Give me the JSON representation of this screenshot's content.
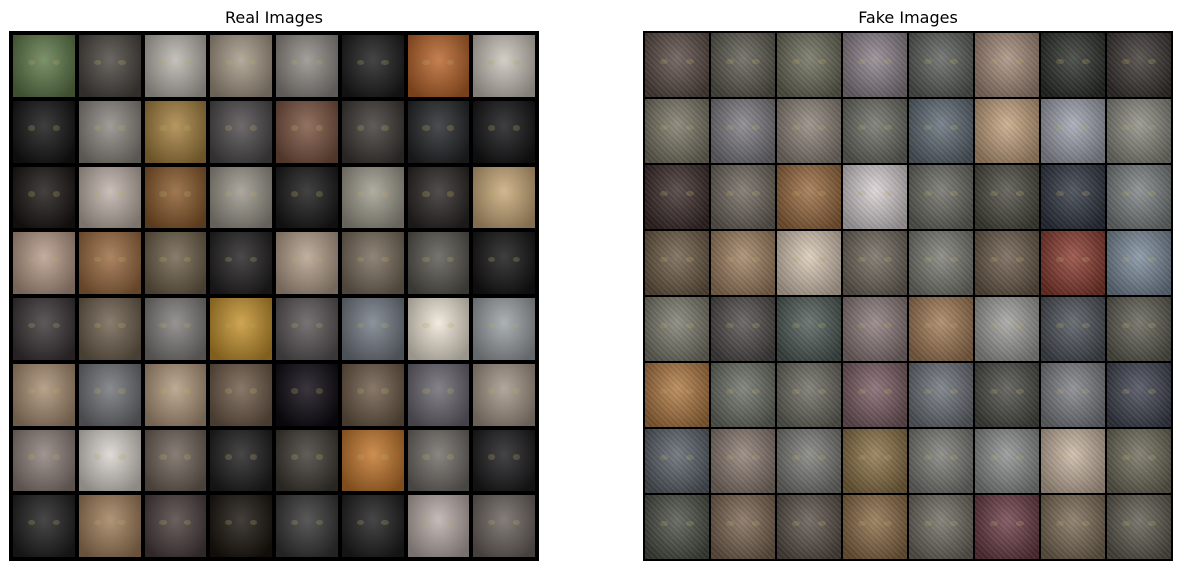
{
  "panels": [
    {
      "id": "real",
      "title": "Real Images",
      "rows": 8,
      "cols": 8,
      "tile_colors": [
        [
          "#5f7a4a",
          "#4a4540",
          "#b8b4ad",
          "#a59886",
          "#8f8a85",
          "#1c1c1c",
          "#b8642a",
          "#c9c3b9"
        ],
        [
          "#141414",
          "#8b8680",
          "#a5813f",
          "#4e4a4c",
          "#7a5340",
          "#3c3835",
          "#232528",
          "#141416"
        ],
        [
          "#1a1614",
          "#bfb1a8",
          "#8a5a2c",
          "#9a958a",
          "#191919",
          "#9e9b8c",
          "#2a2624",
          "#c8a878"
        ],
        [
          "#b69a88",
          "#9a6a40",
          "#6e604a",
          "#232122",
          "#b39e8a",
          "#776a5a",
          "#58564f",
          "#141414"
        ],
        [
          "#3a3436",
          "#6e604e",
          "#7f7d7a",
          "#c4922e",
          "#5a5556",
          "#747b85",
          "#eee6d6",
          "#9aa0a4"
        ],
        [
          "#a88e72",
          "#6f7276",
          "#b1987c",
          "#6e5a48",
          "#0d0a12",
          "#6d5a48",
          "#6a6770",
          "#a29486"
        ],
        [
          "#8c7e78",
          "#d8d2cc",
          "#6e6258",
          "#1e1e1e",
          "#3e3a34",
          "#c2762c",
          "#6f6b66",
          "#1b1b1d"
        ],
        [
          "#1f1f1f",
          "#a07e5a",
          "#4a3e3c",
          "#1a140e",
          "#353535",
          "#1e1e1e",
          "#b8aca8",
          "#6a625e"
        ]
      ]
    },
    {
      "id": "fake",
      "title": "Fake Images",
      "rows": 8,
      "cols": 8,
      "tile_colors": [
        [
          "#5a4a44",
          "#5c5a4e",
          "#6a6a58",
          "#8a8088",
          "#5a5e5a",
          "#a58a78",
          "#2a2e28",
          "#3a3430"
        ],
        [
          "#7a7564",
          "#7c7a80",
          "#8c8278",
          "#6c6c64",
          "#5e6a74",
          "#c5a27e",
          "#9ea2ae",
          "#8a8a80"
        ],
        [
          "#3a2a28",
          "#6e665c",
          "#9a6a3e",
          "#d8d0d2",
          "#6a6a62",
          "#4a4a40",
          "#2e3440",
          "#7a8080"
        ],
        [
          "#6c5a44",
          "#a08060",
          "#d8c8b4",
          "#6e665a",
          "#7a7a72",
          "#6a5a48",
          "#8a3a2e",
          "#7a8a9a"
        ],
        [
          "#7a7a6c",
          "#4e4a48",
          "#4e5a56",
          "#8a7878",
          "#a27a54",
          "#9e9e9a",
          "#4a5058",
          "#5e5e52"
        ],
        [
          "#b07840",
          "#6a6e64",
          "#6a6a60",
          "#7a5c62",
          "#6a7078",
          "#4a4a44",
          "#7c7e84",
          "#3e4250"
        ],
        [
          "#586068",
          "#8a7a70",
          "#7a7a76",
          "#8a7044",
          "#7a7a74",
          "#8a8e8c",
          "#c8b4a0",
          "#6e6a58"
        ],
        [
          "#4a4e44",
          "#7a6450",
          "#5a5048",
          "#8a6a44",
          "#6e6a60",
          "#6a3a44",
          "#7a6a54",
          "#5e5a4e"
        ]
      ]
    }
  ]
}
